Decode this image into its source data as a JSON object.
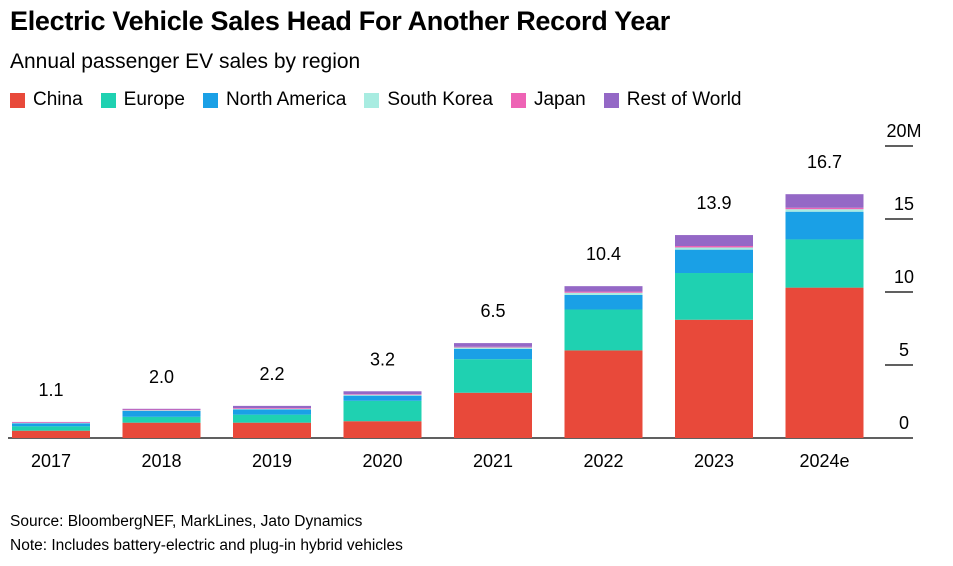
{
  "title": "Electric Vehicle Sales Head For Another Record Year",
  "subtitle": "Annual passenger EV sales by region",
  "source": "Source: BloombergNEF, MarkLines, Jato Dynamics",
  "note": "Note: Includes battery-electric and plug-in hybrid vehicles",
  "chart_data": {
    "type": "bar",
    "stacked": true,
    "categories": [
      "2017",
      "2018",
      "2019",
      "2020",
      "2021",
      "2022",
      "2023",
      "2024e"
    ],
    "totals": [
      1.1,
      2.0,
      2.2,
      3.2,
      6.5,
      10.4,
      13.9,
      16.7
    ],
    "total_labels": [
      "1.1",
      "2.0",
      "2.2",
      "3.2",
      "6.5",
      "10.4",
      "13.9",
      "16.7"
    ],
    "series": [
      {
        "name": "China",
        "color": "#e8493a",
        "values": [
          0.5,
          1.05,
          1.05,
          1.15,
          3.1,
          6.0,
          8.1,
          10.3
        ]
      },
      {
        "name": "Europe",
        "color": "#1fd1b1",
        "values": [
          0.3,
          0.4,
          0.55,
          1.4,
          2.3,
          2.8,
          3.2,
          3.3
        ]
      },
      {
        "name": "North America",
        "color": "#1aa0e6",
        "values": [
          0.2,
          0.4,
          0.35,
          0.35,
          0.7,
          1.0,
          1.6,
          1.9
        ]
      },
      {
        "name": "South Korea",
        "color": "#a8ece1",
        "values": [
          0.03,
          0.05,
          0.05,
          0.06,
          0.1,
          0.15,
          0.15,
          0.17
        ]
      },
      {
        "name": "Japan",
        "color": "#ee63b5",
        "values": [
          0.05,
          0.05,
          0.05,
          0.04,
          0.05,
          0.08,
          0.1,
          0.1
        ]
      },
      {
        "name": "Rest of World",
        "color": "#9468c6",
        "values": [
          0.02,
          0.05,
          0.15,
          0.2,
          0.25,
          0.37,
          0.75,
          0.93
        ]
      }
    ],
    "y_ticks": [
      {
        "value": 20,
        "label": "20M"
      },
      {
        "value": 15,
        "label": "15"
      },
      {
        "value": 10,
        "label": "10"
      },
      {
        "value": 5,
        "label": "5"
      },
      {
        "value": 0,
        "label": "0"
      }
    ],
    "ylim": [
      0,
      20
    ],
    "grid": false,
    "legend_position": "top-left",
    "y_axis_side": "right"
  }
}
